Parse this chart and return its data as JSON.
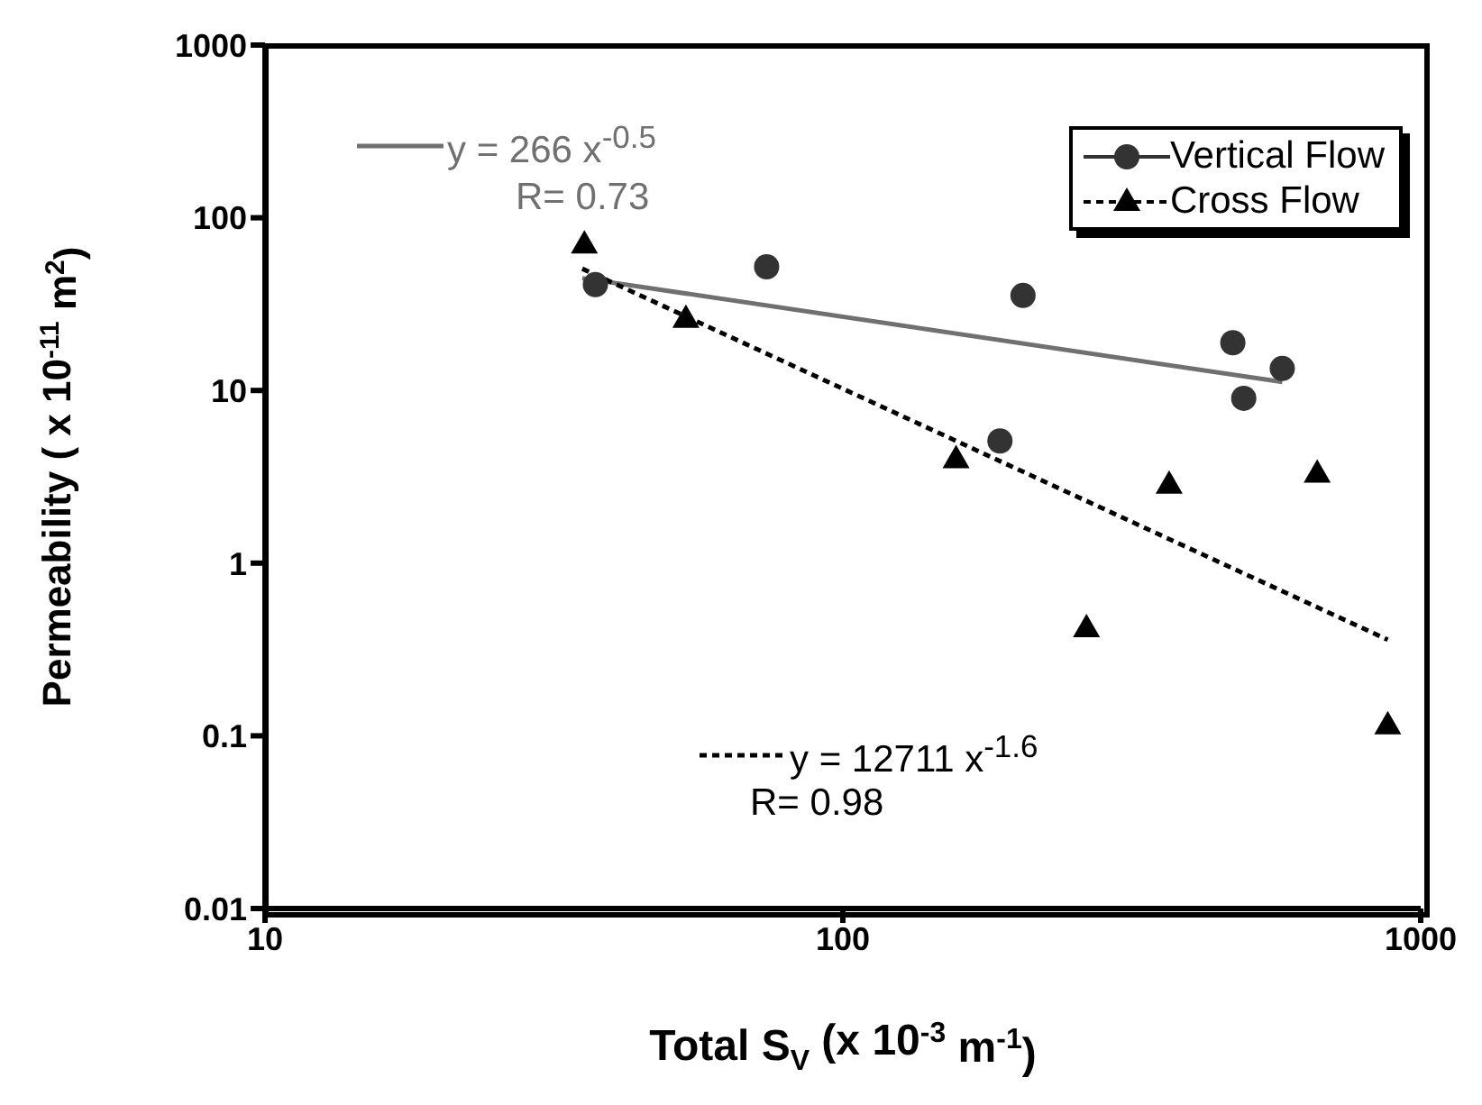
{
  "chart_data": {
    "type": "scatter",
    "xlabel": "Total S$_{V}$ (x 10$^{-3}$ m$^{-1}$)",
    "ylabel": "Permeability ( x 10$^{-11}$ m$^{2}$)",
    "log": "xy",
    "xlim": [
      10,
      1000
    ],
    "xticks": [
      10,
      100,
      1000
    ],
    "ylim": [
      0.01,
      1000
    ],
    "yticks": [
      0.01,
      0.1,
      1,
      10,
      100,
      1000
    ],
    "legend": "top right",
    "series": [
      {
        "name": "Vertical Flow",
        "marker": "circle",
        "line_style": "solid",
        "color": "#333333",
        "x": [
          37.3,
          73.8,
          205,
          473,
          576,
          494,
          187
        ],
        "values": [
          41,
          52,
          35.5,
          18.9,
          13.4,
          9.0,
          5.1
        ]
      },
      {
        "name": "Cross Flow",
        "marker": "triangle",
        "line_style": "dashed",
        "color": "#000000",
        "x": [
          35.7,
          53.5,
          157,
          367,
          662,
          264,
          877
        ],
        "values": [
          70,
          26,
          4.0,
          2.85,
          3.3,
          0.42,
          0.115
        ]
      },
      {
        "type": "line",
        "marker": "none",
        "line_style": "solid",
        "color": "#707070",
        "x": [
          35.4,
          576
        ],
        "values": [
          44.7,
          11.2
        ]
      },
      {
        "type": "line",
        "marker": "none",
        "line_style": "dashed",
        "color": "#000000",
        "x": [
          35.4,
          877
        ],
        "values": [
          50.7,
          0.36
        ]
      }
    ],
    "annotations": [
      "y = 266 x$^{-0.5}$",
      "R= 0.73",
      "y = 12711 x$^{-1.6}$",
      "R= 0.98"
    ]
  }
}
